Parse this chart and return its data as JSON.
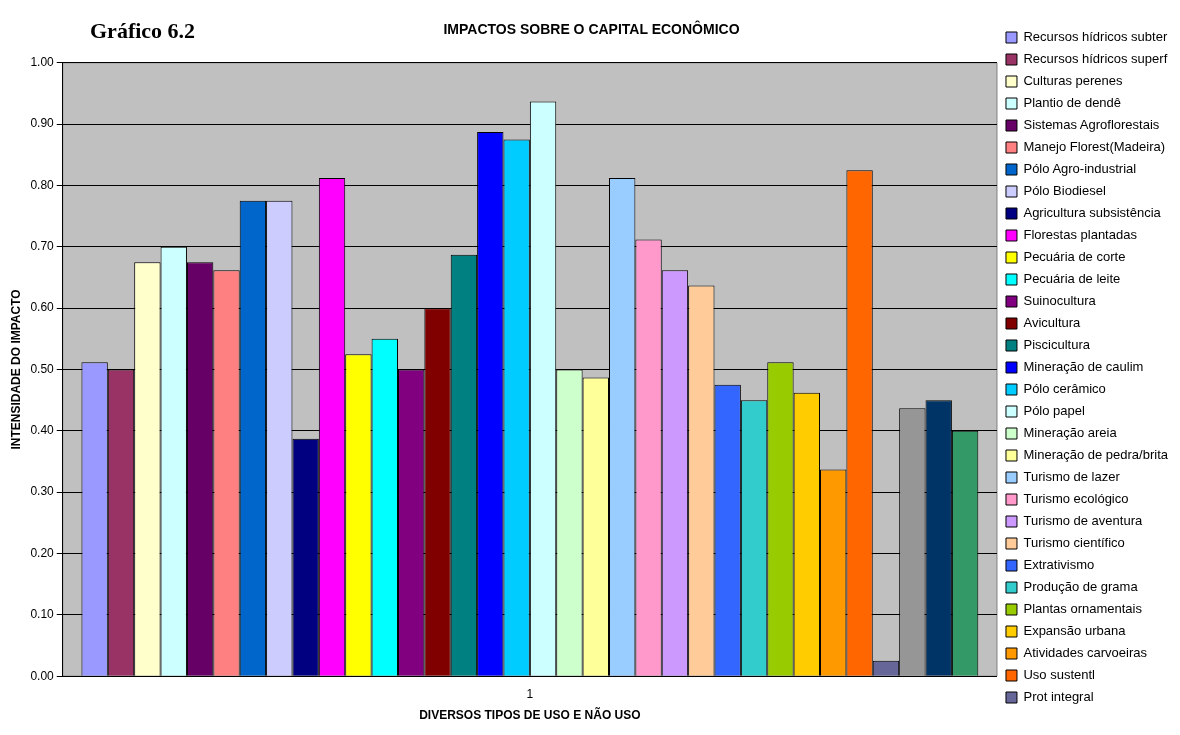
{
  "chart_data": {
    "type": "bar",
    "title": "IMPACTOS SOBRE O CAPITAL ECONÔMICO",
    "xlabel": "DIVERSOS TIPOS DE USO E NÃO USO",
    "ylabel": "INTENSIDADE DO IMPACTO",
    "annotations": [
      "Gráfico 6.2"
    ],
    "categories": [
      "1"
    ],
    "ylim": [
      0,
      1
    ],
    "yticks": [
      {
        "value": 0,
        "label": "0.00"
      },
      {
        "value": 0.1,
        "label": "0.10"
      },
      {
        "value": 0.2,
        "label": "0.20"
      },
      {
        "value": 0.3,
        "label": "0.30"
      },
      {
        "value": 0.4,
        "label": "0.40"
      },
      {
        "value": 0.5,
        "label": "0.50"
      },
      {
        "value": 0.6,
        "label": "0.60"
      },
      {
        "value": 0.7,
        "label": "0.70"
      },
      {
        "value": 0.8,
        "label": "0.80"
      },
      {
        "value": 0.9,
        "label": "0.90"
      },
      {
        "value": 1,
        "label": "1.00"
      }
    ],
    "grid": "y",
    "legend": "right",
    "series": [
      {
        "name": "Recursos hídricos subter",
        "color": "#9999ff",
        "values": [
          0.512
        ]
      },
      {
        "name": "Recursos hídricos superf",
        "color": "#993366",
        "values": [
          0.5
        ]
      },
      {
        "name": "Culturas perenes",
        "color": "#ffffcc",
        "values": [
          0.675
        ]
      },
      {
        "name": "Plantio de dendê",
        "color": "#ccffff",
        "values": [
          0.7
        ]
      },
      {
        "name": "Sistemas Agroflorestais",
        "color": "#660066",
        "values": [
          0.675
        ]
      },
      {
        "name": "Manejo Florest(Madeira)",
        "color": "#ff8080",
        "values": [
          0.662
        ]
      },
      {
        "name": "Pólo Agro-industrial",
        "color": "#0066cc",
        "values": [
          0.775
        ]
      },
      {
        "name": "Pólo Biodiesel",
        "color": "#ccccff",
        "values": [
          0.775
        ]
      },
      {
        "name": "Agricultura subsistência",
        "color": "#000080",
        "values": [
          0.387
        ]
      },
      {
        "name": "Florestas plantadas",
        "color": "#ff00ff",
        "values": [
          0.812
        ]
      },
      {
        "name": "Pecuária de corte",
        "color": "#ffff00",
        "values": [
          0.525
        ]
      },
      {
        "name": "Pecuária de leite",
        "color": "#00ffff",
        "values": [
          0.55
        ]
      },
      {
        "name": "Suinocultura",
        "color": "#800080",
        "values": [
          0.5
        ]
      },
      {
        "name": "Avicultura",
        "color": "#800000",
        "values": [
          0.6
        ]
      },
      {
        "name": "Piscicultura",
        "color": "#008080",
        "values": [
          0.687
        ]
      },
      {
        "name": "Mineração de caulim",
        "color": "#0000ff",
        "values": [
          0.887
        ]
      },
      {
        "name": "Pólo cerâmico",
        "color": "#00ccff",
        "values": [
          0.875
        ]
      },
      {
        "name": "Pólo papel",
        "color": "#ccffff",
        "values": [
          0.937
        ]
      },
      {
        "name": "Mineração areia",
        "color": "#ccffcc",
        "values": [
          0.5
        ]
      },
      {
        "name": "Mineração de pedra/brita",
        "color": "#ffff99",
        "values": [
          0.487
        ]
      },
      {
        "name": "Turismo de lazer",
        "color": "#99ccff",
        "values": [
          0.812
        ]
      },
      {
        "name": "Turismo ecológico",
        "color": "#ff99cc",
        "values": [
          0.712
        ]
      },
      {
        "name": "Turismo de aventura",
        "color": "#cc99ff",
        "values": [
          0.662
        ]
      },
      {
        "name": "Turismo científico",
        "color": "#ffcc99",
        "values": [
          0.637
        ]
      },
      {
        "name": "Extrativismo",
        "color": "#3366ff",
        "values": [
          0.475
        ]
      },
      {
        "name": "Produção de grama",
        "color": "#33cccc",
        "values": [
          0.45
        ]
      },
      {
        "name": "Plantas ornamentais",
        "color": "#99cc00",
        "values": [
          0.512
        ]
      },
      {
        "name": "Expansão urbana",
        "color": "#ffcc00",
        "values": [
          0.462
        ]
      },
      {
        "name": "Atividades carvoeiras",
        "color": "#ff9900",
        "values": [
          0.337
        ]
      },
      {
        "name": "Uso sustentl",
        "color": "#ff6600",
        "values": [
          0.825
        ]
      },
      {
        "name": "Prot integral",
        "color": "#666699",
        "values": [
          0.025
        ]
      },
      {
        "color": "#969696",
        "values": [
          0.437
        ]
      },
      {
        "color": "#003366",
        "values": [
          0.45
        ]
      },
      {
        "color": "#339966",
        "values": [
          0.4
        ]
      }
    ]
  }
}
